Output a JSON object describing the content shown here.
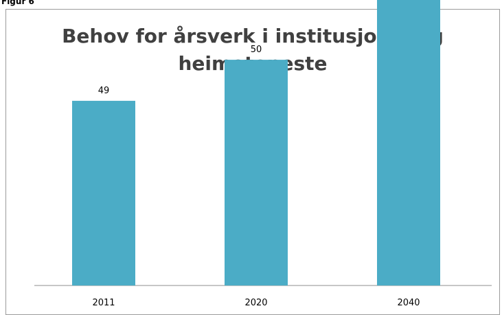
{
  "figure_label": "Figur 6",
  "chart_data": {
    "type": "bar",
    "title_lines": [
      "Behov for årsverk i institusjons- og",
      "heimeteneste"
    ],
    "categories": [
      "2011",
      "2020",
      "2040"
    ],
    "values": [
      49,
      50,
      53
    ],
    "xlabel": "",
    "ylabel": "",
    "grid": false,
    "legend": "none",
    "bar_color": "#4bacc6",
    "axis_color": "#8c8c8c"
  }
}
